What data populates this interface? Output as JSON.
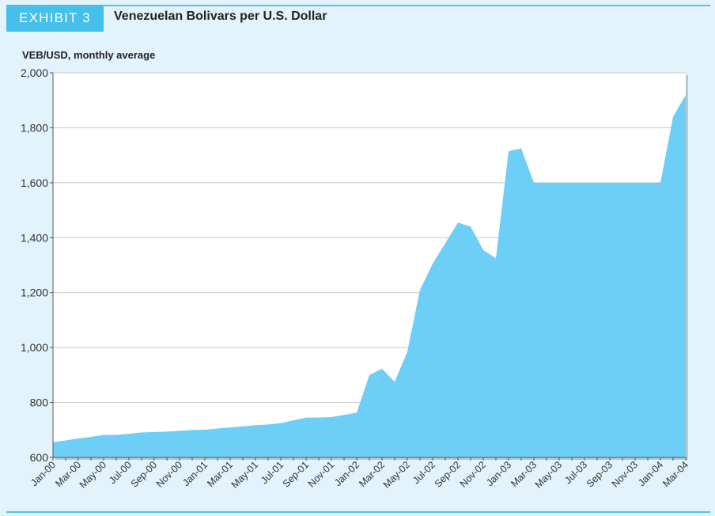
{
  "exhibit": {
    "tag": "EXHIBIT 3",
    "title": "Venezuelan Bolivars per U.S. Dollar"
  },
  "colors": {
    "background": "#e2f3fb",
    "accent": "#45c0ea",
    "area_fill": "#6dcff5",
    "plot_bg": "#ffffff",
    "gridline": "#c8c8c8"
  },
  "chart_data": {
    "type": "area",
    "title": "Venezuelan Bolivars per U.S. Dollar",
    "ylabel": "VEB/USD, monthly average",
    "xlabel": "",
    "ylim": [
      600,
      2000
    ],
    "yticks": [
      600,
      800,
      1000,
      1200,
      1400,
      1600,
      1800,
      2000
    ],
    "ytick_labels": [
      "600",
      "800",
      "1,000",
      "1,200",
      "1,400",
      "1,600",
      "1,800",
      "2,000"
    ],
    "grid": true,
    "x": [
      "Jan-00",
      "Feb-00",
      "Mar-00",
      "Apr-00",
      "May-00",
      "Jun-00",
      "Jul-00",
      "Aug-00",
      "Sep-00",
      "Oct-00",
      "Nov-00",
      "Dec-00",
      "Jan-01",
      "Feb-01",
      "Mar-01",
      "Apr-01",
      "May-01",
      "Jun-01",
      "Jul-01",
      "Aug-01",
      "Sep-01",
      "Oct-01",
      "Nov-01",
      "Dec-01",
      "Jan-02",
      "Feb-02",
      "Mar-02",
      "Apr-02",
      "May-02",
      "Jun-02",
      "Jul-02",
      "Aug-02",
      "Sep-02",
      "Oct-02",
      "Nov-02",
      "Dec-02",
      "Jan-03",
      "Feb-03",
      "Mar-03",
      "Apr-03",
      "May-03",
      "Jun-03",
      "Jul-03",
      "Aug-03",
      "Sep-03",
      "Oct-03",
      "Nov-03",
      "Dec-03",
      "Jan-04",
      "Feb-04",
      "Mar-04"
    ],
    "xtick_labels": [
      "Jan-00",
      "Mar-00",
      "May-00",
      "Jul-00",
      "Sep-00",
      "Nov-00",
      "Jan-01",
      "Mar-01",
      "May-01",
      "Jul-01",
      "Sep-01",
      "Nov-01",
      "Jan-02",
      "Mar-02",
      "May-02",
      "Jul-02",
      "Sep-02",
      "Nov-02",
      "Jan-03",
      "Mar-03",
      "May-03",
      "Jul-03",
      "Sep-03",
      "Nov-03",
      "Jan-04",
      "Mar-04"
    ],
    "series": [
      {
        "name": "VEB/USD",
        "values": [
          655,
          662,
          669,
          675,
          682,
          682,
          686,
          691,
          692,
          694,
          697,
          700,
          701,
          705,
          709,
          713,
          717,
          720,
          725,
          735,
          745,
          745,
          747,
          755,
          763,
          900,
          923,
          875,
          985,
          1210,
          1305,
          1380,
          1455,
          1440,
          1355,
          1325,
          1715,
          1725,
          1600,
          1600,
          1600,
          1600,
          1600,
          1600,
          1600,
          1600,
          1600,
          1600,
          1600,
          1840,
          1920
        ]
      }
    ]
  }
}
